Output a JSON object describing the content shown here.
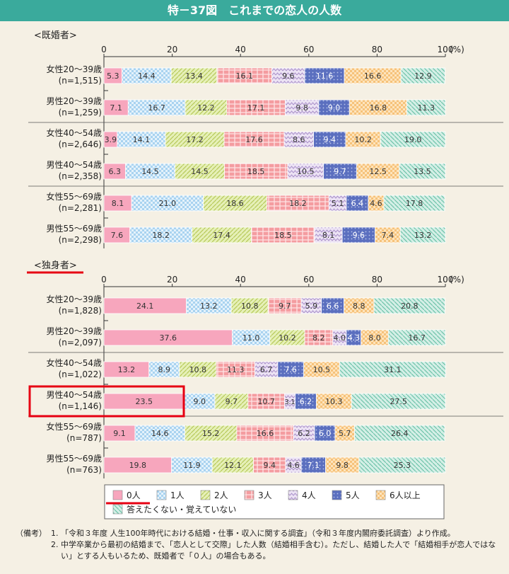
{
  "title": "特－37図　これまでの恋人の人数",
  "chart_data": {
    "type": "bar",
    "orientation": "horizontal-stacked-100",
    "axis_ticks": [
      "0",
      "20",
      "40",
      "60",
      "80",
      "100"
    ],
    "axis_unit": "(%)",
    "categories": [
      "0人",
      "1人",
      "2人",
      "3人",
      "4人",
      "5人",
      "6人以上",
      "答えたくない・覚えていない"
    ],
    "colors": [
      "#f7a6bd",
      "#a9d3f0",
      "#dcea9a",
      "#f49ca0",
      "#d6c6e6",
      "#5b6fbf",
      "#fbd79e",
      "#a7ddcc"
    ],
    "groups": [
      {
        "label": "<既婚者>",
        "rows": [
          {
            "name": "女性20～39歳",
            "n": "(n=1,515)",
            "values": [
              5.3,
              14.4,
              13.4,
              16.1,
              9.6,
              11.6,
              16.6,
              12.9
            ],
            "labels": [
              "5.3",
              "14.4",
              "13.4",
              "16.1",
              "9.6",
              "11.6",
              "16.6",
              "12.9"
            ]
          },
          {
            "name": "男性20～39歳",
            "n": "(n=1,259)",
            "values": [
              7.1,
              16.7,
              12.2,
              17.1,
              9.8,
              9.0,
              16.8,
              11.3
            ],
            "labels": [
              "7.1",
              "16.7",
              "12.2",
              "17.1",
              "9.8",
              "9.0",
              "16.8",
              "11.3"
            ]
          },
          {
            "name": "女性40～54歳",
            "n": "(n=2,646)",
            "values": [
              3.9,
              14.1,
              17.2,
              17.6,
              8.6,
              9.4,
              10.2,
              19.0
            ],
            "labels": [
              "3.9",
              "14.1",
              "17.2",
              "17.6",
              "8.6",
              "9.4",
              "10.2",
              "19.0"
            ]
          },
          {
            "name": "男性40～54歳",
            "n": "(n=2,358)",
            "values": [
              6.3,
              14.5,
              14.5,
              18.5,
              10.5,
              9.7,
              12.5,
              13.5
            ],
            "labels": [
              "6.3",
              "14.5",
              "14.5",
              "18.5",
              "10.5",
              "9.7",
              "12.5",
              "13.5"
            ]
          },
          {
            "name": "女性55～69歳",
            "n": "(n=2,281)",
            "values": [
              8.1,
              21.0,
              18.6,
              18.2,
              5.1,
              6.4,
              4.6,
              17.8
            ],
            "labels": [
              "8.1",
              "21.0",
              "18.6",
              "18.2",
              "5.1",
              "6.4",
              "4.6",
              "17.8"
            ]
          },
          {
            "name": "男性55～69歳",
            "n": "(n=2,298)",
            "values": [
              7.6,
              18.2,
              17.4,
              18.5,
              8.1,
              9.6,
              7.4,
              13.2
            ],
            "labels": [
              "7.6",
              "18.2",
              "17.4",
              "18.5",
              "8.1",
              "9.6",
              "7.4",
              "13.2"
            ]
          }
        ]
      },
      {
        "label": "<独身者>",
        "rows": [
          {
            "name": "女性20～39歳",
            "n": "(n=1,828)",
            "values": [
              24.1,
              13.2,
              10.8,
              9.7,
              5.9,
              6.6,
              8.8,
              20.8
            ],
            "labels": [
              "24.1",
              "13.2",
              "10.8",
              "9.7",
              "5.9",
              "6.6",
              "8.8",
              "20.8"
            ]
          },
          {
            "name": "男性20～39歳",
            "n": "(n=2,097)",
            "values": [
              37.6,
              11.0,
              10.2,
              8.2,
              4.0,
              4.3,
              8.0,
              16.7
            ],
            "labels": [
              "37.6",
              "11.0",
              "10.2",
              "8.2",
              "4.0",
              "4.3",
              "8.0",
              "16.7"
            ]
          },
          {
            "name": "女性40～54歳",
            "n": "(n=1,022)",
            "values": [
              13.2,
              8.9,
              10.8,
              11.3,
              6.7,
              7.6,
              10.5,
              31.1
            ],
            "labels": [
              "13.2",
              "8.9",
              "10.8",
              "11.3",
              "6.7",
              "7.6",
              "10.5",
              "31.1"
            ]
          },
          {
            "name": "男性40～54歳",
            "n": "(n=1,146)",
            "values": [
              23.5,
              9.0,
              9.7,
              10.7,
              3.1,
              6.2,
              10.3,
              27.5
            ],
            "labels": [
              "23.5",
              "9.0",
              "9.7",
              "10.7",
              "3.1",
              "6.2",
              "10.3",
              "27.5"
            ],
            "highlight": true
          },
          {
            "name": "女性55～69歳",
            "n": "(n=787)",
            "values": [
              9.1,
              14.6,
              15.2,
              16.6,
              6.2,
              6.0,
              5.7,
              26.4
            ],
            "labels": [
              "9.1",
              "14.6",
              "15.2",
              "16.6",
              "6.2",
              "6.0",
              "5.7",
              "26.4"
            ]
          },
          {
            "name": "男性55～69歳",
            "n": "(n=763)",
            "values": [
              19.8,
              11.9,
              12.1,
              9.4,
              4.6,
              7.1,
              9.8,
              25.3
            ],
            "labels": [
              "19.8",
              "11.9",
              "12.1",
              "9.4",
              "4.6",
              "7.1",
              "9.8",
              "25.3"
            ]
          }
        ]
      }
    ]
  },
  "notes": {
    "lead": "（備考）",
    "items": [
      {
        "num": "1.",
        "text": "「令和３年度 人生100年時代における結婚・仕事・収入に関する調査」（令和３年度内閣府委託調査）より作成。"
      },
      {
        "num": "2.",
        "text": "中学卒業から最初の結婚まで、「恋人として交際」した人数（結婚相手含む）。ただし、結婚した人で「結婚相手が恋人ではない」とする人もいるため、既婚者で「０人」の場合もある。"
      }
    ]
  }
}
